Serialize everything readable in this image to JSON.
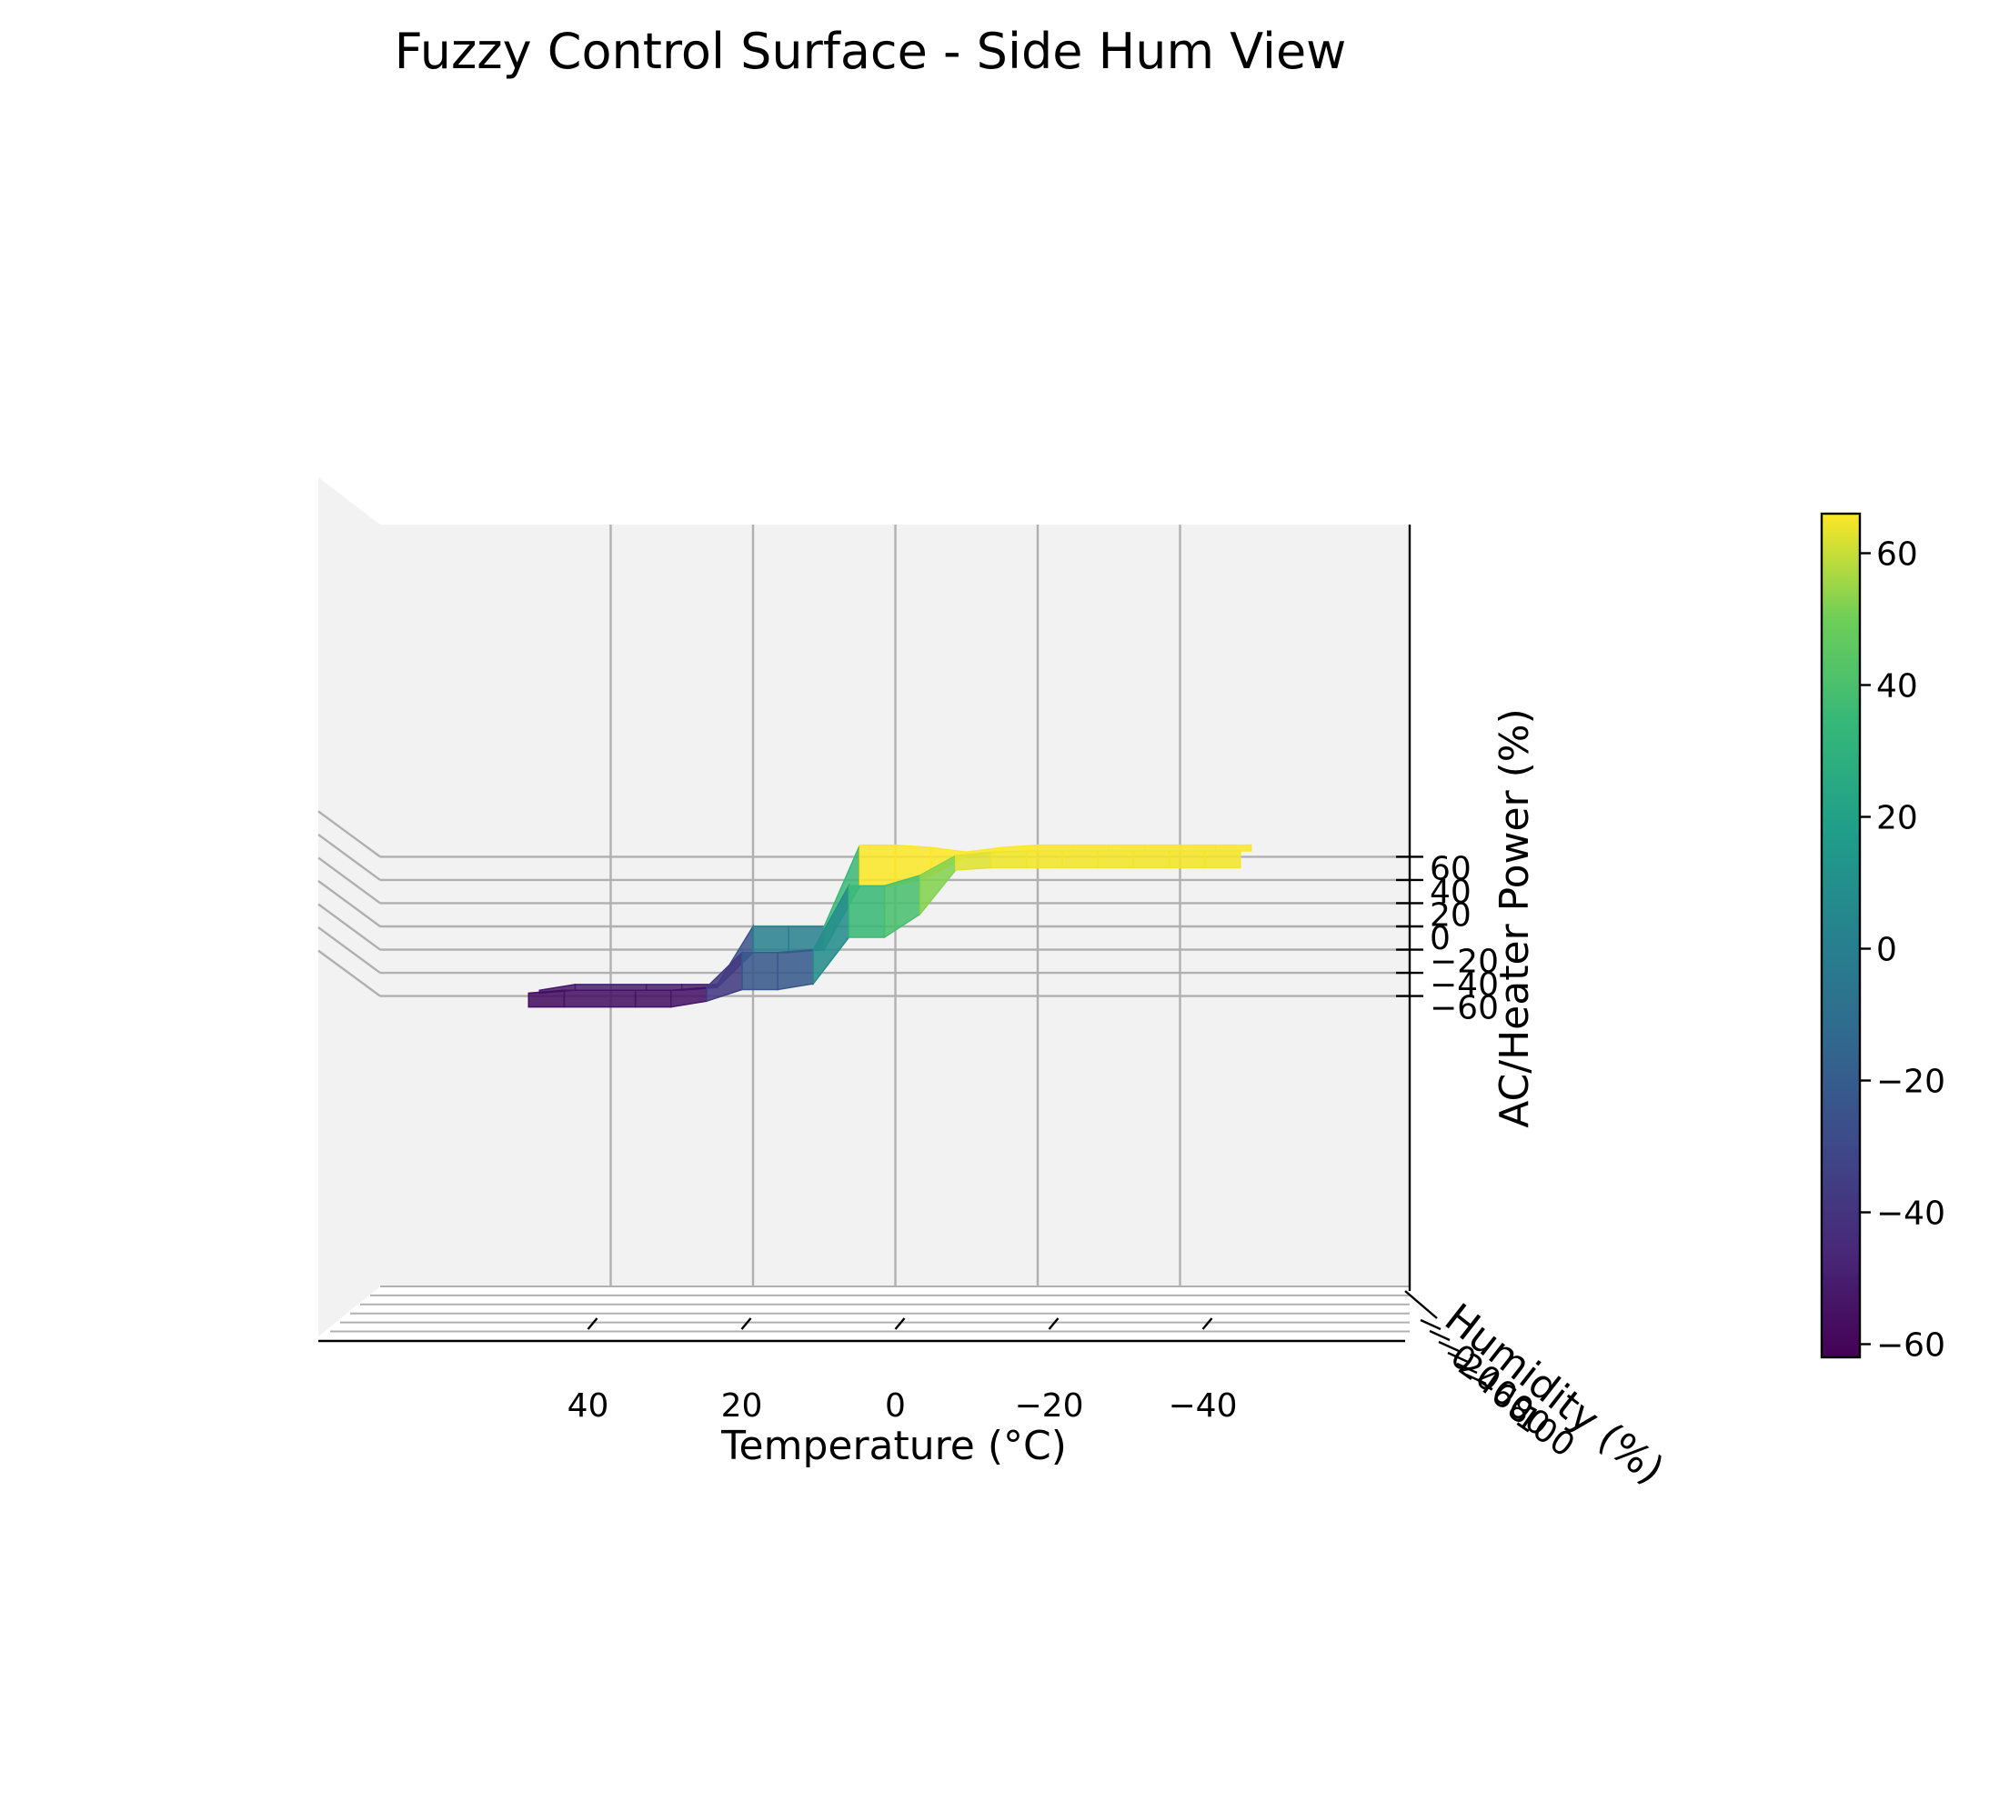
{
  "chart_data": {
    "type": "surface",
    "title": "Fuzzy Control Surface - Side Hum View",
    "xlabel": "Temperature (°C)",
    "ylabel": "Humidity (%)",
    "zlabel": "AC/Heater Power (%)",
    "x_ticks": [
      "40",
      "20",
      "0",
      "−20",
      "−40"
    ],
    "y_ticks": [
      "0",
      "20",
      "40",
      "60",
      "80",
      "100"
    ],
    "z_ticks": [
      "60",
      "40",
      "20",
      "0",
      "−20",
      "−40",
      "−60"
    ],
    "colorbar": {
      "colormap": "viridis",
      "range": [
        -62,
        66
      ],
      "ticks": [
        "60",
        "40",
        "20",
        "0",
        "−20",
        "−40",
        "−60"
      ]
    },
    "xlim": [
      -50,
      55
    ],
    "zlim": [
      -65,
      70
    ],
    "grid": true,
    "surface_profile": {
      "temperature": [
        50,
        45,
        35,
        30,
        25,
        20,
        15,
        10,
        5,
        0,
        -5,
        -10,
        -15,
        -20,
        -25,
        -30,
        -35,
        -40,
        -45,
        -50
      ],
      "min_power": [
        -60,
        -60,
        -60,
        -60,
        -55,
        -45,
        -45,
        -40,
        0,
        0,
        20,
        58,
        60,
        60,
        60,
        60,
        60,
        60,
        60,
        60
      ],
      "max_power": [
        -55,
        -50,
        -50,
        -50,
        -50,
        0,
        0,
        0,
        70,
        70,
        68,
        64,
        68,
        70,
        70,
        70,
        70,
        70,
        70,
        70
      ]
    }
  }
}
